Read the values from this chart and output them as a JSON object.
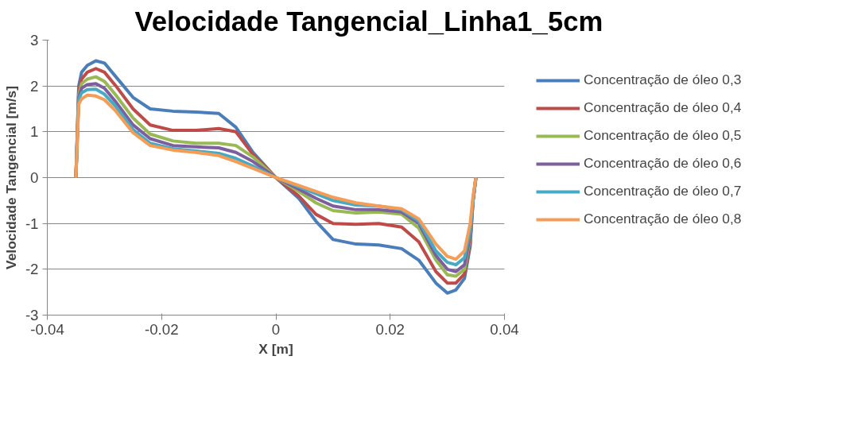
{
  "chart_data": {
    "type": "line",
    "title": "Velocidade Tangencial_Linha1_5cm",
    "xlabel": "X [m]",
    "ylabel": "Velocidade Tangencial [m/s]",
    "x": [
      -0.035,
      -0.0345,
      -0.034,
      -0.033,
      -0.0315,
      -0.03,
      -0.028,
      -0.025,
      -0.022,
      -0.018,
      -0.014,
      -0.01,
      -0.007,
      -0.004,
      0,
      0.004,
      0.007,
      0.01,
      0.014,
      0.018,
      0.022,
      0.025,
      0.028,
      0.03,
      0.0315,
      0.033,
      0.034,
      0.0345,
      0.035
    ],
    "series": [
      {
        "name": "Concentração de óleo 0,3",
        "color": "#4a7ebb",
        "values": [
          0,
          2.0,
          2.3,
          2.45,
          2.55,
          2.5,
          2.2,
          1.75,
          1.5,
          1.45,
          1.43,
          1.4,
          1.1,
          0.55,
          0,
          -0.45,
          -0.95,
          -1.35,
          -1.45,
          -1.47,
          -1.55,
          -1.8,
          -2.3,
          -2.52,
          -2.45,
          -2.2,
          -1.5,
          -0.5,
          0
        ]
      },
      {
        "name": "Concentração de óleo 0,4",
        "color": "#be4b48",
        "values": [
          0,
          1.9,
          2.15,
          2.3,
          2.38,
          2.3,
          2.0,
          1.5,
          1.15,
          1.03,
          1.03,
          1.07,
          1.0,
          0.5,
          0,
          -0.4,
          -0.8,
          -1.0,
          -1.02,
          -1.0,
          -1.08,
          -1.4,
          -2.05,
          -2.3,
          -2.3,
          -2.1,
          -1.4,
          -0.5,
          0
        ]
      },
      {
        "name": "Concentração de óleo 0,5",
        "color": "#98b954",
        "values": [
          0,
          1.8,
          2.05,
          2.15,
          2.2,
          2.1,
          1.8,
          1.3,
          0.95,
          0.8,
          0.75,
          0.75,
          0.7,
          0.45,
          0,
          -0.3,
          -0.55,
          -0.72,
          -0.77,
          -0.75,
          -0.8,
          -1.1,
          -1.8,
          -2.12,
          -2.15,
          -2.0,
          -1.3,
          -0.5,
          0
        ]
      },
      {
        "name": "Concentração de óleo 0,6",
        "color": "#7d5fa0",
        "values": [
          0,
          1.75,
          1.95,
          2.03,
          2.05,
          1.95,
          1.65,
          1.15,
          0.85,
          0.7,
          0.67,
          0.65,
          0.55,
          0.35,
          0,
          -0.25,
          -0.45,
          -0.62,
          -0.7,
          -0.7,
          -0.75,
          -1.0,
          -1.7,
          -2.0,
          -2.05,
          -1.9,
          -1.25,
          -0.5,
          0
        ]
      },
      {
        "name": "Concentração de óleo 0,7",
        "color": "#46aac5",
        "values": [
          0,
          1.7,
          1.85,
          1.92,
          1.93,
          1.82,
          1.55,
          1.05,
          0.75,
          0.63,
          0.58,
          0.53,
          0.42,
          0.25,
          0,
          -0.2,
          -0.35,
          -0.5,
          -0.6,
          -0.62,
          -0.7,
          -0.95,
          -1.6,
          -1.85,
          -1.9,
          -1.75,
          -1.15,
          -0.5,
          0
        ]
      },
      {
        "name": "Concentração de óleo 0,8",
        "color": "#f59d56",
        "values": [
          0,
          1.6,
          1.72,
          1.8,
          1.78,
          1.7,
          1.45,
          0.98,
          0.7,
          0.6,
          0.55,
          0.48,
          0.35,
          0.2,
          0,
          -0.17,
          -0.3,
          -0.43,
          -0.55,
          -0.62,
          -0.68,
          -0.9,
          -1.45,
          -1.72,
          -1.78,
          -1.6,
          -1.0,
          -0.4,
          0
        ]
      }
    ],
    "xlim": [
      -0.04,
      0.04
    ],
    "xticks": [
      -0.04,
      -0.02,
      0,
      0.02,
      0.04
    ],
    "ylim": [
      -3,
      3
    ],
    "yticks": [
      -3,
      -2,
      -1,
      0,
      1,
      2,
      3
    ],
    "grid": "y",
    "legend": "right",
    "marker": "none",
    "line_style": "solid"
  }
}
